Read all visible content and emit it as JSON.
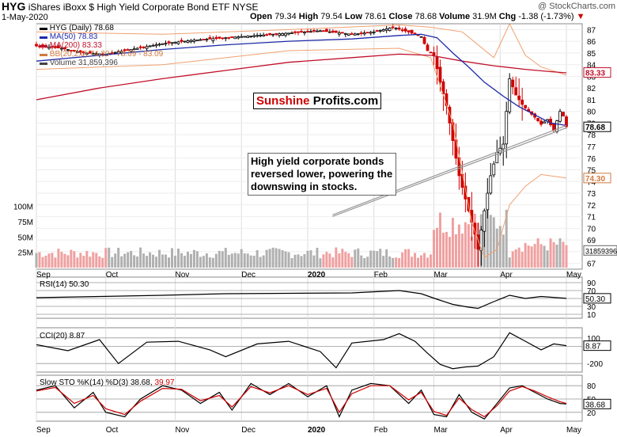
{
  "header": {
    "symbol": "HYG",
    "name": "iShares iBoxx $ High Yield Corporate Bond ETF",
    "exchange": "NYSE",
    "date": "1-May-2020",
    "open_label": "Open",
    "open": "79.34",
    "high_label": "High",
    "high": "79.54",
    "low_label": "Low",
    "low": "78.61",
    "close_label": "Close",
    "close": "78.68",
    "volume_label": "Volume",
    "volume": "31.9M",
    "chg_label": "Chg",
    "chg": "-1.38 (-1.73%)",
    "watermark": "@ StockCharts.com"
  },
  "legend": {
    "main": "HYG (Daily) 78.68",
    "ma50": "MA(50) 78.83",
    "ma200": "MA(200) 83.33",
    "bb": "BB(20,2.0) 74.30 - 78.69 - 83.09",
    "volume": "Volume 31,859,396"
  },
  "panels": {
    "rsi_label": "RSI(14) 50.30",
    "cci_label": "CCI(20) 8.87",
    "sto_label": "Slow STO %K(14) %D(3) 38.68,",
    "sto_d": "39.97"
  },
  "annotations": {
    "logo_a": "Sunshine",
    "logo_b": "Profits.com",
    "note": "High yield corporate bonds reversed lower, powering the downswing in stocks."
  },
  "colors": {
    "up": "#000000",
    "down": "#d00000",
    "ma50": "#1c2aa8",
    "ma200": "#c0102a",
    "bb": "#f0a070",
    "vol_up": "#b0b0b0",
    "vol_down": "#f0a0a0"
  },
  "chart_data": [
    {
      "type": "line",
      "title": "HYG (Daily)",
      "price_axis": {
        "min": 66.5,
        "max": 87.5,
        "ticks": [
          67,
          68,
          69,
          70,
          71,
          72,
          73,
          74,
          75,
          76,
          77,
          78,
          79,
          80,
          81,
          82,
          83,
          84,
          85,
          86,
          87
        ]
      },
      "price_tags": [
        {
          "value": 83.33,
          "label": "83.33"
        },
        {
          "value": 78.68,
          "label": "78.68"
        },
        {
          "value": 74.3,
          "label": "74.30"
        }
      ],
      "volume_axis": {
        "ticks": [
          {
            "value": 25,
            "label": "25M"
          },
          {
            "value": 50,
            "label": "50M"
          },
          {
            "value": 75,
            "label": "75M"
          },
          {
            "value": 100,
            "label": "100M"
          }
        ],
        "max": 120,
        "tag": "31859396"
      },
      "x_labels": [
        "Sep",
        "Oct",
        "Nov",
        "Dec",
        "2020",
        "Feb",
        "Mar",
        "Apr",
        "May"
      ],
      "x_label_pos": [
        0,
        22,
        44,
        65,
        86,
        107,
        126,
        147,
        168
      ],
      "ohlc_anchors": [
        [
          0,
          85.6
        ],
        [
          8,
          85.4
        ],
        [
          15,
          85.0
        ],
        [
          22,
          84.9
        ],
        [
          30,
          85.3
        ],
        [
          40,
          85.8
        ],
        [
          50,
          86.1
        ],
        [
          60,
          86.3
        ],
        [
          70,
          86.5
        ],
        [
          80,
          86.7
        ],
        [
          90,
          86.9
        ],
        [
          100,
          86.6
        ],
        [
          107,
          86.8
        ],
        [
          113,
          87.2
        ],
        [
          118,
          86.8
        ],
        [
          122,
          86.4
        ],
        [
          124,
          85.2
        ],
        [
          126,
          84.8
        ],
        [
          128,
          82.5
        ],
        [
          130,
          80.5
        ],
        [
          132,
          77.5
        ],
        [
          134,
          74.5
        ],
        [
          136,
          72.5
        ],
        [
          138,
          70.5
        ],
        [
          139,
          69.5
        ],
        [
          140,
          68.2
        ],
        [
          142,
          71.5
        ],
        [
          144,
          74.5
        ],
        [
          146,
          76.5
        ],
        [
          148,
          77.2
        ],
        [
          150,
          82.8
        ],
        [
          152,
          81.4
        ],
        [
          154,
          80.6
        ],
        [
          156,
          80.0
        ],
        [
          158,
          79.5
        ],
        [
          160,
          78.9
        ],
        [
          162,
          79.3
        ],
        [
          164,
          78.4
        ],
        [
          166,
          80.0
        ],
        [
          167,
          79.6
        ],
        [
          168,
          78.7
        ]
      ],
      "ma50": [
        [
          0,
          84.3
        ],
        [
          20,
          84.8
        ],
        [
          40,
          85.3
        ],
        [
          60,
          85.7
        ],
        [
          80,
          86.0
        ],
        [
          100,
          86.2
        ],
        [
          115,
          86.5
        ],
        [
          122,
          86.6
        ],
        [
          127,
          86.3
        ],
        [
          132,
          85.0
        ],
        [
          137,
          83.8
        ],
        [
          142,
          82.5
        ],
        [
          148,
          81.3
        ],
        [
          153,
          80.4
        ],
        [
          158,
          79.7
        ],
        [
          163,
          79.0
        ],
        [
          168,
          78.8
        ]
      ],
      "ma200": [
        [
          0,
          81.0
        ],
        [
          20,
          82.0
        ],
        [
          40,
          82.8
        ],
        [
          60,
          83.5
        ],
        [
          80,
          84.2
        ],
        [
          100,
          84.6
        ],
        [
          115,
          84.9
        ],
        [
          125,
          84.8
        ],
        [
          135,
          84.3
        ],
        [
          145,
          83.9
        ],
        [
          155,
          83.6
        ],
        [
          163,
          83.4
        ],
        [
          168,
          83.3
        ]
      ],
      "bb_upper": [
        [
          0,
          86.8
        ],
        [
          40,
          86.6
        ],
        [
          80,
          87.0
        ],
        [
          115,
          87.4
        ],
        [
          125,
          87.2
        ],
        [
          135,
          86.8
        ],
        [
          145,
          84.6
        ],
        [
          150,
          87.5
        ],
        [
          155,
          84.8
        ],
        [
          160,
          83.8
        ],
        [
          168,
          83.1
        ]
      ],
      "bb_lower": [
        [
          0,
          83.6
        ],
        [
          40,
          84.0
        ],
        [
          80,
          85.2
        ],
        [
          115,
          85.4
        ],
        [
          125,
          84.6
        ],
        [
          132,
          79.0
        ],
        [
          138,
          70.5
        ],
        [
          142,
          67.5
        ],
        [
          146,
          68.2
        ],
        [
          150,
          72.0
        ],
        [
          155,
          73.6
        ],
        [
          160,
          74.6
        ],
        [
          168,
          74.3
        ]
      ],
      "trendline": [
        [
          139,
          72.5
        ],
        [
          168,
          78.8
        ]
      ]
    },
    {
      "type": "line",
      "title": "RSI(14)",
      "y_ticks": [
        10,
        30,
        50,
        70,
        90
      ],
      "tag": "50.30",
      "values": [
        [
          0,
          52
        ],
        [
          20,
          55
        ],
        [
          40,
          58
        ],
        [
          60,
          62
        ],
        [
          80,
          63
        ],
        [
          100,
          64
        ],
        [
          115,
          70
        ],
        [
          122,
          62
        ],
        [
          127,
          48
        ],
        [
          132,
          35
        ],
        [
          137,
          28
        ],
        [
          140,
          25
        ],
        [
          145,
          42
        ],
        [
          150,
          58
        ],
        [
          155,
          50
        ],
        [
          160,
          55
        ],
        [
          168,
          50.3
        ]
      ]
    },
    {
      "type": "line",
      "title": "CCI(20)",
      "y_ticks": [
        -200,
        0,
        100
      ],
      "tag": "8.87",
      "values": [
        [
          0,
          20
        ],
        [
          10,
          -50
        ],
        [
          20,
          80
        ],
        [
          26,
          -200
        ],
        [
          35,
          50
        ],
        [
          45,
          60
        ],
        [
          55,
          -40
        ],
        [
          60,
          -120
        ],
        [
          70,
          30
        ],
        [
          80,
          60
        ],
        [
          90,
          -60
        ],
        [
          95,
          -250
        ],
        [
          100,
          40
        ],
        [
          110,
          80
        ],
        [
          115,
          150
        ],
        [
          120,
          60
        ],
        [
          124,
          -80
        ],
        [
          128,
          -210
        ],
        [
          132,
          -260
        ],
        [
          136,
          -240
        ],
        [
          140,
          -230
        ],
        [
          145,
          -120
        ],
        [
          150,
          160
        ],
        [
          155,
          60
        ],
        [
          160,
          -40
        ],
        [
          164,
          30
        ],
        [
          168,
          8.87
        ]
      ]
    },
    {
      "type": "line",
      "title": "Slow STO %K(14) %D(3)",
      "y_ticks": [
        20,
        50,
        80
      ],
      "tag": "38.68",
      "k": [
        [
          0,
          70
        ],
        [
          6,
          80
        ],
        [
          12,
          30
        ],
        [
          18,
          65
        ],
        [
          22,
          20
        ],
        [
          28,
          10
        ],
        [
          33,
          50
        ],
        [
          40,
          80
        ],
        [
          46,
          70
        ],
        [
          52,
          40
        ],
        [
          58,
          65
        ],
        [
          62,
          25
        ],
        [
          68,
          85
        ],
        [
          74,
          60
        ],
        [
          80,
          85
        ],
        [
          86,
          55
        ],
        [
          92,
          80
        ],
        [
          96,
          10
        ],
        [
          100,
          70
        ],
        [
          106,
          85
        ],
        [
          112,
          80
        ],
        [
          118,
          40
        ],
        [
          122,
          70
        ],
        [
          126,
          15
        ],
        [
          130,
          10
        ],
        [
          134,
          60
        ],
        [
          138,
          20
        ],
        [
          142,
          5
        ],
        [
          146,
          40
        ],
        [
          150,
          75
        ],
        [
          154,
          80
        ],
        [
          158,
          65
        ],
        [
          162,
          50
        ],
        [
          166,
          40
        ],
        [
          168,
          38.68
        ]
      ],
      "d": [
        [
          0,
          68
        ],
        [
          6,
          76
        ],
        [
          12,
          40
        ],
        [
          18,
          58
        ],
        [
          22,
          28
        ],
        [
          28,
          15
        ],
        [
          33,
          45
        ],
        [
          40,
          74
        ],
        [
          46,
          72
        ],
        [
          52,
          46
        ],
        [
          58,
          58
        ],
        [
          62,
          32
        ],
        [
          68,
          78
        ],
        [
          74,
          64
        ],
        [
          80,
          80
        ],
        [
          86,
          60
        ],
        [
          92,
          74
        ],
        [
          96,
          20
        ],
        [
          100,
          62
        ],
        [
          106,
          80
        ],
        [
          112,
          80
        ],
        [
          118,
          48
        ],
        [
          122,
          65
        ],
        [
          126,
          22
        ],
        [
          130,
          13
        ],
        [
          134,
          52
        ],
        [
          138,
          26
        ],
        [
          142,
          10
        ],
        [
          146,
          35
        ],
        [
          150,
          68
        ],
        [
          154,
          78
        ],
        [
          158,
          68
        ],
        [
          162,
          55
        ],
        [
          166,
          44
        ],
        [
          168,
          39.97
        ]
      ]
    }
  ]
}
